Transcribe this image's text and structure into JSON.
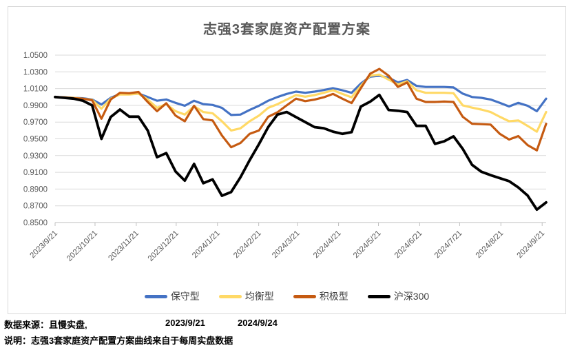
{
  "chart": {
    "title": "志强3套家庭资产配置方案"
  },
  "chart_data": {
    "type": "line",
    "title": "志强3套家庭资产配置方案",
    "sampling": "weekly",
    "grid": true,
    "legend_position": "bottom",
    "x_axis": {
      "labels": [
        "2023/9/21",
        "2023/10/21",
        "2023/11/21",
        "2023/12/21",
        "2024/1/21",
        "2024/2/21",
        "2024/3/21",
        "2024/4/21",
        "2024/5/21",
        "2024/6/21",
        "2024/7/21",
        "2024/8/21",
        "2024/9/21"
      ],
      "start_date": "2023/9/21",
      "end_date": "2024/9/24"
    },
    "y_axis": {
      "min": 0.85,
      "max": 1.05,
      "step": 0.02,
      "tick_labels": [
        "1.0500",
        "1.0300",
        "1.0100",
        "0.9900",
        "0.9700",
        "0.9500",
        "0.9300",
        "0.9100",
        "0.8900",
        "0.8700",
        "0.8500"
      ]
    },
    "series": [
      {
        "name": "保守型",
        "color": "#4472C4",
        "values": [
          1.0,
          0.9995,
          0.999,
          0.9985,
          0.997,
          0.991,
          0.999,
          1.0035,
          1.0035,
          1.004,
          1.0,
          0.9955,
          0.997,
          0.993,
          0.9895,
          0.9955,
          0.9915,
          0.9905,
          0.987,
          0.9785,
          0.979,
          0.9845,
          0.9895,
          0.9955,
          1.0,
          1.0037,
          1.0064,
          1.005,
          1.0064,
          1.0083,
          1.0105,
          1.008,
          1.005,
          1.016,
          1.0242,
          1.0254,
          1.023,
          1.0173,
          1.0203,
          1.0133,
          1.012,
          1.012,
          1.012,
          1.0114,
          1.004,
          1.0,
          0.999,
          0.997,
          0.993,
          0.9887,
          0.993,
          0.9895,
          0.983,
          0.998
        ]
      },
      {
        "name": "均衡型",
        "color": "#FFD966",
        "values": [
          1.0,
          0.9995,
          0.999,
          0.998,
          0.9965,
          0.986,
          0.998,
          1.003,
          1.003,
          1.004,
          0.997,
          0.987,
          0.9915,
          0.983,
          0.979,
          0.989,
          0.982,
          0.9805,
          0.971,
          0.96,
          0.9625,
          0.971,
          0.9777,
          0.987,
          0.9914,
          0.9968,
          1.0023,
          1.0004,
          1.0023,
          1.005,
          1.008,
          1.0037,
          0.9996,
          1.0133,
          1.0254,
          1.0268,
          1.0207,
          1.015,
          1.0187,
          1.008,
          1.005,
          1.005,
          1.005,
          1.0045,
          0.99,
          0.9873,
          0.985,
          0.982,
          0.9763,
          0.971,
          0.972,
          0.9655,
          0.9586,
          0.982
        ]
      },
      {
        "name": "积极型",
        "color": "#C55A11",
        "values": [
          1.0,
          0.9995,
          0.9985,
          0.998,
          0.996,
          0.974,
          0.997,
          1.005,
          1.0045,
          1.006,
          0.994,
          0.983,
          0.9925,
          0.9777,
          0.971,
          0.9895,
          0.9735,
          0.972,
          0.954,
          0.94,
          0.945,
          0.956,
          0.96,
          0.9763,
          0.9817,
          0.99,
          0.998,
          0.995,
          0.9968,
          0.9996,
          1.0037,
          0.998,
          0.9927,
          1.0105,
          1.0277,
          1.0335,
          1.0254,
          1.012,
          1.0173,
          0.998,
          0.994,
          0.994,
          0.9945,
          0.994,
          0.9763,
          0.968,
          0.9675,
          0.967,
          0.956,
          0.9492,
          0.9533,
          0.9425,
          0.9362,
          0.968
        ]
      },
      {
        "name": "沪深300",
        "color": "#000000",
        "values": [
          1.0,
          0.999,
          0.998,
          0.9955,
          0.99,
          0.95,
          0.976,
          0.985,
          0.9765,
          0.9765,
          0.96,
          0.928,
          0.933,
          0.911,
          0.9,
          0.92,
          0.897,
          0.9015,
          0.882,
          0.8865,
          0.904,
          0.9245,
          0.9437,
          0.964,
          0.979,
          0.982,
          0.976,
          0.97,
          0.964,
          0.9627,
          0.9586,
          0.956,
          0.958,
          0.9885,
          0.9944,
          1.0025,
          0.9845,
          0.9835,
          0.982,
          0.9655,
          0.9655,
          0.944,
          0.947,
          0.953,
          0.938,
          0.919,
          0.9107,
          0.9066,
          0.903,
          0.8995,
          0.8919,
          0.8823,
          0.8655,
          0.874
        ]
      }
    ]
  },
  "footer": {
    "source_label": "数据来源：且慢实盘,",
    "start_date": "2023/9/21",
    "end_date": "2024/9/24",
    "note": "说明：志强3套家庭资产配置方案曲线来自于每周实盘数据"
  }
}
